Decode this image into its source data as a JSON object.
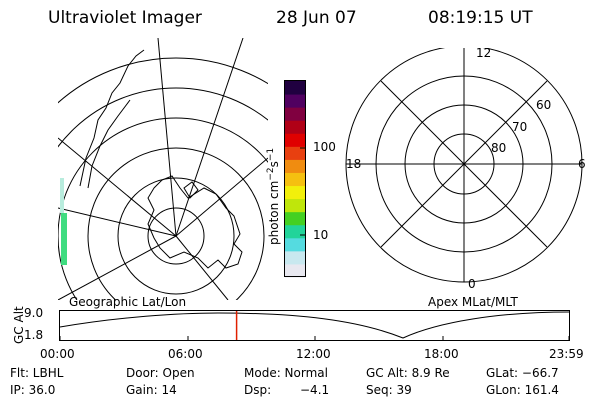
{
  "header": {
    "title": "Ultraviolet Imager",
    "date": "28 Jun 07",
    "time": "08:19:15 UT"
  },
  "colorbar": {
    "unit_label": "photon cm",
    "unit_sup1": "−2",
    "unit_mid": "s",
    "unit_sup2": "−1",
    "tick_100": "100",
    "tick_10": "10",
    "colors": [
      "#e8e8f0",
      "#c8e8ef",
      "#55dbe0",
      "#22d49a",
      "#44d022",
      "#bfe60b",
      "#f2f00b",
      "#f5c010",
      "#f08c10",
      "#e84010",
      "#e00000",
      "#b00016",
      "#800040",
      "#500060",
      "#200040"
    ]
  },
  "left_panel": {
    "title": "Geographic Lat/Lon"
  },
  "right_panel": {
    "title": "Apex MLat/MLT",
    "mlt_labels": {
      "top": "12",
      "left": "18",
      "right": "6",
      "bottom": "0"
    },
    "lat_labels": [
      "60",
      "70",
      "80"
    ]
  },
  "altitude_plot": {
    "ylabel": "GC Alt",
    "yticks": [
      "9.0",
      "1.8"
    ],
    "xticks": [
      "00:00",
      "06:00",
      "12:00",
      "18:00",
      "23:59"
    ],
    "current_time_fraction": 0.347
  },
  "info_rows": {
    "row1": {
      "filter": "Flt: LBHL",
      "door": "Door: Open",
      "mode": "Mode: Normal",
      "gc_alt": "GC Alt: 8.9 Re",
      "glat": "GLat: −66.7"
    },
    "row2": {
      "ip": "IP: 36.0",
      "gain": "Gain: 14",
      "dsp_label": "Dsp:",
      "dsp_value": "−4.1",
      "seq": "Seq: 39",
      "glon": "GLon: 161.4"
    }
  }
}
